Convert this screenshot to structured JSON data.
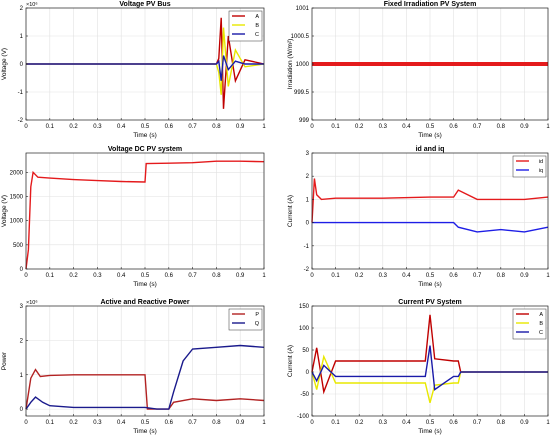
{
  "chart_data": [
    {
      "id": "p1",
      "type": "line",
      "title": "Voltage PV Bus",
      "xlabel": "Time (s)",
      "ylabel": "Voltage (V)",
      "y_multiplier": "×10⁶",
      "xlim": [
        0,
        1
      ],
      "ylim": [
        -2,
        2
      ],
      "xticks": [
        0,
        0.1,
        0.2,
        0.3,
        0.4,
        0.5,
        0.6,
        0.7,
        0.8,
        0.9,
        1
      ],
      "xtick_labels": [
        "0",
        "0.1",
        "0.2",
        "0.3",
        "0.4",
        "0.5",
        "0.6",
        "0.7",
        "0.8",
        "0.9",
        "1"
      ],
      "yticks": [
        -2,
        -1,
        0,
        1,
        2
      ],
      "ytick_labels": [
        "-2",
        "-1",
        "0",
        "1",
        "2"
      ],
      "grid": true,
      "legend_position": "top-right",
      "series": [
        {
          "name": "A",
          "color": "#c00000",
          "x": [
            0,
            0.5,
            0.8,
            0.81,
            0.82,
            0.83,
            0.85,
            0.88,
            0.92,
            1
          ],
          "y": [
            0,
            0,
            0,
            0.2,
            1.65,
            -1.6,
            1.0,
            -0.6,
            0.15,
            0
          ]
        },
        {
          "name": "B",
          "color": "#e8e800",
          "x": [
            0,
            0.5,
            0.8,
            0.81,
            0.82,
            0.83,
            0.85,
            0.88,
            0.92,
            1
          ],
          "y": [
            0,
            0,
            0,
            -0.3,
            -1.1,
            1.3,
            -0.8,
            0.5,
            -0.1,
            0
          ]
        },
        {
          "name": "C",
          "color": "#1a1aa8",
          "x": [
            0,
            0.5,
            0.8,
            0.81,
            0.82,
            0.83,
            0.85,
            0.88,
            0.92,
            1
          ],
          "y": [
            0,
            0,
            0,
            0.1,
            -0.6,
            0.3,
            -0.2,
            0.1,
            0,
            0
          ]
        }
      ]
    },
    {
      "id": "p2",
      "type": "line",
      "title": "Fixed Irradiation PV System",
      "xlabel": "Time (s)",
      "ylabel": "Irradiation (W/m²)",
      "xlim": [
        0,
        1
      ],
      "ylim": [
        999,
        1001
      ],
      "xticks": [
        0,
        0.1,
        0.2,
        0.3,
        0.4,
        0.5,
        0.6,
        0.7,
        0.8,
        0.9,
        1
      ],
      "xtick_labels": [
        "0",
        "0.1",
        "0.2",
        "0.3",
        "0.4",
        "0.5",
        "0.6",
        "0.7",
        "0.8",
        "0.9",
        "1"
      ],
      "yticks": [
        999,
        999.5,
        1000,
        1000.5,
        1001
      ],
      "ytick_labels": [
        "999",
        "999.5",
        "1000",
        "1000.5",
        "1001"
      ],
      "grid": true,
      "series": [
        {
          "color": "#e41a1c",
          "x": [
            0,
            1
          ],
          "y": [
            1000,
            1000
          ]
        }
      ]
    },
    {
      "id": "p3",
      "type": "line",
      "title": "Voltage DC PV system",
      "xlabel": "Time (s)",
      "ylabel": "Voltage (V)",
      "xlim": [
        0,
        1
      ],
      "ylim": [
        0,
        2400
      ],
      "xticks": [
        0,
        0.1,
        0.2,
        0.3,
        0.4,
        0.5,
        0.6,
        0.7,
        0.8,
        0.9,
        1
      ],
      "xtick_labels": [
        "0",
        "0.1",
        "0.2",
        "0.3",
        "0.4",
        "0.5",
        "0.6",
        "0.7",
        "0.8",
        "0.9",
        "1"
      ],
      "yticks": [
        0,
        500,
        1000,
        1500,
        2000
      ],
      "ytick_labels": [
        "0",
        "500",
        "1000",
        "1500",
        "2000"
      ],
      "grid": true,
      "series": [
        {
          "color": "#e41a1c",
          "x": [
            0,
            0.01,
            0.02,
            0.03,
            0.05,
            0.1,
            0.2,
            0.3,
            0.4,
            0.5,
            0.505,
            0.6,
            0.7,
            0.8,
            0.9,
            1
          ],
          "y": [
            0,
            400,
            1700,
            2000,
            1900,
            1880,
            1850,
            1830,
            1810,
            1800,
            2180,
            2190,
            2200,
            2230,
            2230,
            2220
          ]
        }
      ]
    },
    {
      "id": "p4",
      "type": "line",
      "title": "id and iq",
      "xlabel": "Time (s)",
      "ylabel": "Current (A)",
      "xlim": [
        0,
        1
      ],
      "ylim": [
        -2,
        3
      ],
      "xticks": [
        0,
        0.1,
        0.2,
        0.3,
        0.4,
        0.5,
        0.6,
        0.7,
        0.8,
        0.9,
        1
      ],
      "xtick_labels": [
        "0",
        "0.1",
        "0.2",
        "0.3",
        "0.4",
        "0.5",
        "0.6",
        "0.7",
        "0.8",
        "0.9",
        "1"
      ],
      "yticks": [
        -2,
        -1,
        0,
        1,
        2,
        3
      ],
      "ytick_labels": [
        "-2",
        "-1",
        "0",
        "1",
        "2",
        "3"
      ],
      "grid": true,
      "legend_position": "top-right",
      "series": [
        {
          "name": "id",
          "color": "#e41a1c",
          "x": [
            0,
            0.01,
            0.02,
            0.04,
            0.1,
            0.3,
            0.5,
            0.6,
            0.62,
            0.7,
            0.8,
            0.9,
            1
          ],
          "y": [
            0,
            1.9,
            1.2,
            1.0,
            1.05,
            1.05,
            1.1,
            1.1,
            1.4,
            1.0,
            1.0,
            1.0,
            1.1
          ]
        },
        {
          "name": "iq",
          "color": "#1e1ee6",
          "x": [
            0,
            0.1,
            0.3,
            0.5,
            0.6,
            0.62,
            0.7,
            0.8,
            0.9,
            1
          ],
          "y": [
            0,
            0,
            0,
            0,
            0,
            -0.2,
            -0.4,
            -0.3,
            -0.4,
            -0.2
          ]
        }
      ]
    },
    {
      "id": "p5",
      "type": "line",
      "title": "Active and Reactive Power",
      "xlabel": "Time (s)",
      "ylabel": "Power",
      "y_multiplier": "×10⁶",
      "xlim": [
        0,
        1
      ],
      "ylim": [
        -0.2,
        3
      ],
      "xticks": [
        0,
        0.1,
        0.2,
        0.3,
        0.4,
        0.5,
        0.6,
        0.7,
        0.8,
        0.9,
        1
      ],
      "xtick_labels": [
        "0",
        "0.1",
        "0.2",
        "0.3",
        "0.4",
        "0.5",
        "0.6",
        "0.7",
        "0.8",
        "0.9",
        "1"
      ],
      "yticks": [
        0,
        1,
        2,
        3
      ],
      "ytick_labels": [
        "0",
        "1",
        "2",
        "3"
      ],
      "grid": true,
      "legend_position": "top-right",
      "series": [
        {
          "name": "P",
          "color": "#b22222",
          "x": [
            0,
            0.02,
            0.04,
            0.06,
            0.1,
            0.2,
            0.3,
            0.4,
            0.5,
            0.51,
            0.55,
            0.6,
            0.62,
            0.7,
            0.8,
            0.9,
            1
          ],
          "y": [
            0,
            0.9,
            1.15,
            0.95,
            0.98,
            1.0,
            1.0,
            1.0,
            1.0,
            0.0,
            0.0,
            0.0,
            0.2,
            0.3,
            0.25,
            0.3,
            0.25
          ]
        },
        {
          "name": "Q",
          "color": "#1a1a8c",
          "x": [
            0,
            0.02,
            0.04,
            0.07,
            0.1,
            0.2,
            0.3,
            0.4,
            0.5,
            0.55,
            0.6,
            0.62,
            0.66,
            0.7,
            0.8,
            0.9,
            1
          ],
          "y": [
            0,
            0.2,
            0.35,
            0.2,
            0.1,
            0.05,
            0.05,
            0.05,
            0.05,
            0.0,
            0.0,
            0.5,
            1.4,
            1.75,
            1.8,
            1.85,
            1.8
          ]
        }
      ]
    },
    {
      "id": "p6",
      "type": "line",
      "title": "Current PV System",
      "xlabel": "Time (s)",
      "ylabel": "Current (A)",
      "xlim": [
        0,
        1
      ],
      "ylim": [
        -100,
        150
      ],
      "xticks": [
        0,
        0.1,
        0.2,
        0.3,
        0.4,
        0.5,
        0.6,
        0.7,
        0.8,
        0.9,
        1
      ],
      "xtick_labels": [
        "0",
        "0.1",
        "0.2",
        "0.3",
        "0.4",
        "0.5",
        "0.6",
        "0.7",
        "0.8",
        "0.9",
        "1"
      ],
      "yticks": [
        -100,
        -50,
        0,
        50,
        100,
        150
      ],
      "ytick_labels": [
        "-100",
        "-50",
        "0",
        "50",
        "100",
        "150"
      ],
      "grid": true,
      "legend_position": "top-right",
      "series": [
        {
          "name": "A",
          "color": "#c00000",
          "x": [
            0,
            0.02,
            0.05,
            0.1,
            0.3,
            0.48,
            0.5,
            0.52,
            0.6,
            0.62,
            0.63,
            1
          ],
          "y": [
            0,
            55,
            -45,
            25,
            25,
            25,
            130,
            30,
            25,
            25,
            0,
            0
          ]
        },
        {
          "name": "B",
          "color": "#e8e800",
          "x": [
            0,
            0.02,
            0.05,
            0.1,
            0.3,
            0.48,
            0.5,
            0.52,
            0.6,
            0.62,
            0.63,
            1
          ],
          "y": [
            0,
            -40,
            35,
            -25,
            -25,
            -25,
            -70,
            -30,
            -25,
            -25,
            0,
            0
          ]
        },
        {
          "name": "C",
          "color": "#1a1aa8",
          "x": [
            0,
            0.02,
            0.05,
            0.1,
            0.3,
            0.48,
            0.5,
            0.52,
            0.6,
            0.62,
            0.63,
            1
          ],
          "y": [
            0,
            -20,
            15,
            -10,
            -10,
            -10,
            60,
            -40,
            -10,
            -10,
            0,
            0
          ]
        }
      ]
    }
  ]
}
